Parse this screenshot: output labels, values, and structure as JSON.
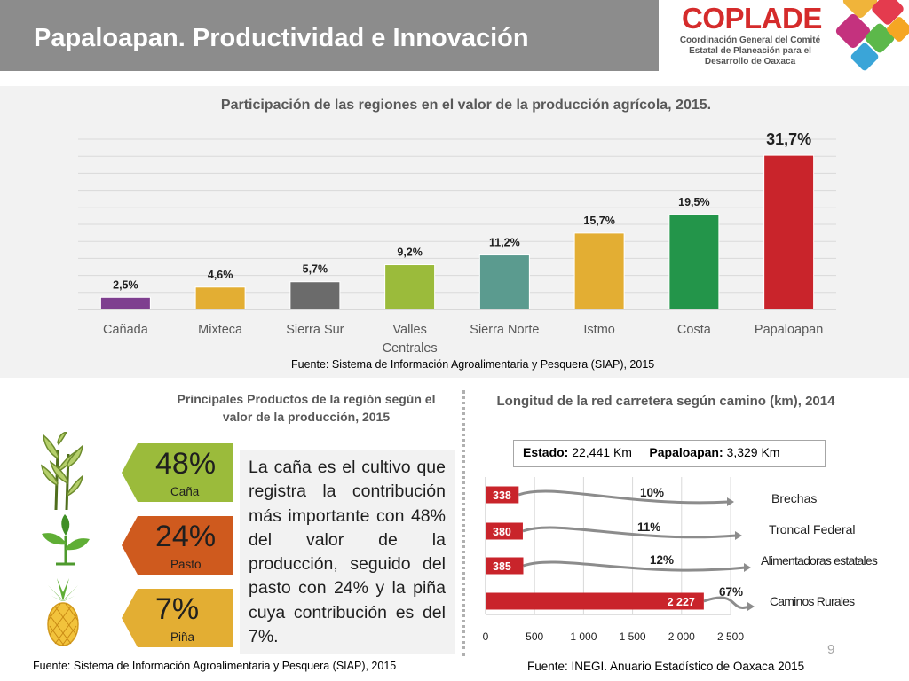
{
  "header": {
    "title": "Papaloapan. Productividad e Innovación"
  },
  "logo": {
    "name": "COPLADE",
    "subtitle": "Coordinación General del Comité Estatal de Planeación para el Desarrollo de Oaxaca"
  },
  "colors": {
    "header_bg": "#8c8c8c",
    "logo_red": "#d52b2b",
    "green": "#9bbb3b",
    "orange": "#cf5a1e",
    "yellow": "#e3ae33",
    "road_red": "#c9242b"
  },
  "top_chart": {
    "source": "Fuente: Sistema de Información Agroalimentaria y Pesquera (SIAP), 2015"
  },
  "products": {
    "title": "Principales Productos de la región según el valor de la producción, 2015",
    "items": [
      {
        "percent": "48%",
        "name": "Caña",
        "color": "#9bbb3b",
        "icon": "sugarcane-icon"
      },
      {
        "percent": "24%",
        "name": "Pasto",
        "color": "#cf5a1e",
        "icon": "plant-icon"
      },
      {
        "percent": "7%",
        "name": "Piña",
        "color": "#e3ae33",
        "icon": "pineapple-icon"
      }
    ],
    "description": "La caña es el cultivo que registra la contribución más importante con 48% del valor de la producción, seguido del pasto con 24% y la piña cuya contribución es del 7%.",
    "source": "Fuente: Sistema de Información Agroalimentaria y Pesquera (SIAP), 2015"
  },
  "roads": {
    "title": "Longitud de la red carretera según camino (km), 2014",
    "estado_label": "Estado:",
    "estado_value": "22,441 Km",
    "papaloapan_label": "Papaloapan:",
    "papaloapan_value": "3,329 Km",
    "source": "Fuente: INEGI. Anuario Estadístico de Oaxaca 2015"
  },
  "page_number": "9",
  "chart_data": [
    {
      "type": "bar",
      "title": "Participación de las regiones en el valor de la producción agrícola, 2015.",
      "categories": [
        "Cañada",
        "Mixteca",
        "Sierra Sur",
        "Valles Centrales",
        "Sierra Norte",
        "Istmo",
        "Costa",
        "Papaloapan"
      ],
      "values": [
        2.5,
        4.6,
        5.7,
        9.2,
        11.2,
        15.7,
        19.5,
        31.7
      ],
      "data_labels": [
        "2,5%",
        "4,6%",
        "5,7%",
        "9,2%",
        "11,2%",
        "15,7%",
        "19,5%",
        "31,7%"
      ],
      "colors": [
        "#7e3f8f",
        "#e3ae33",
        "#6b6b6b",
        "#9bbb3b",
        "#5b9b8f",
        "#e3ae33",
        "#23954a",
        "#c9242b"
      ],
      "ylim": [
        0,
        35
      ],
      "grid": true,
      "xlabel": "",
      "ylabel": ""
    },
    {
      "type": "bar",
      "orientation": "horizontal",
      "title": "Longitud de la red carretera según camino (km), 2014",
      "categories": [
        "Brechas",
        "Troncal Federal",
        "Alimentadoras estatales",
        "Caminos Rurales"
      ],
      "values": [
        338,
        380,
        385,
        2227
      ],
      "data_labels": [
        "338",
        "380",
        "385",
        "2 227"
      ],
      "shares": [
        "10%",
        "11%",
        "12%",
        "67%"
      ],
      "x_ticks": [
        "0",
        "500",
        "1 000",
        "1 500",
        "2 000",
        "2 500"
      ],
      "xlim": [
        0,
        2500
      ],
      "color": "#c9242b",
      "grid": true
    }
  ]
}
